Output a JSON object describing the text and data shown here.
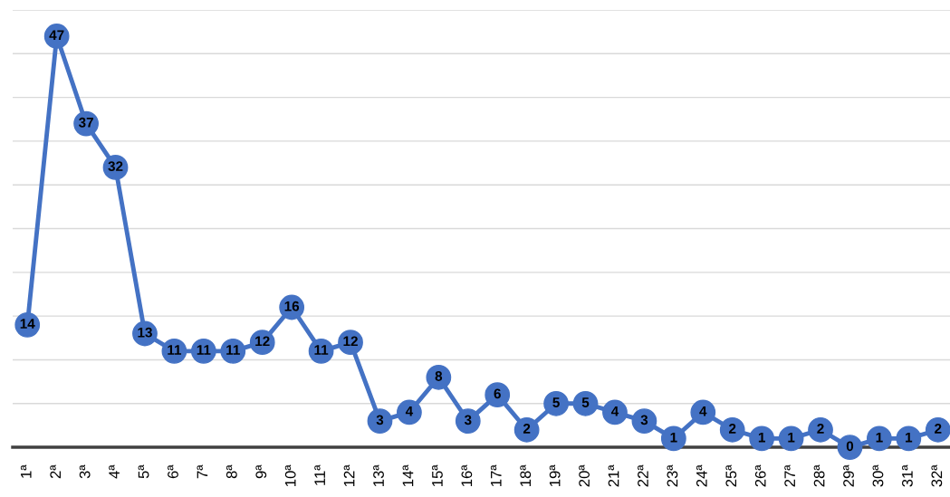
{
  "chart_data": {
    "type": "line",
    "categories": [
      "1ª",
      "2ª",
      "3ª",
      "4ª",
      "5ª",
      "6ª",
      "7ª",
      "8ª",
      "9ª",
      "10ª",
      "11ª",
      "12ª",
      "13ª",
      "14ª",
      "15ª",
      "16ª",
      "17ª",
      "18ª",
      "19ª",
      "20ª",
      "21ª",
      "22ª",
      "23ª",
      "24ª",
      "25ª",
      "26ª",
      "27ª",
      "28ª",
      "29ª",
      "30ª",
      "31ª",
      "32ª"
    ],
    "series": [
      {
        "color": "#4472c4",
        "values": [
          14,
          47,
          37,
          32,
          13,
          11,
          11,
          11,
          12,
          16,
          11,
          12,
          3,
          4,
          8,
          3,
          6,
          2,
          5,
          5,
          4,
          3,
          1,
          4,
          2,
          1,
          1,
          2,
          0,
          1,
          1,
          2
        ]
      }
    ],
    "tick_labels": "x",
    "grid": "y",
    "marker": "circle",
    "line_style": "solid",
    "data_labels": true
  }
}
